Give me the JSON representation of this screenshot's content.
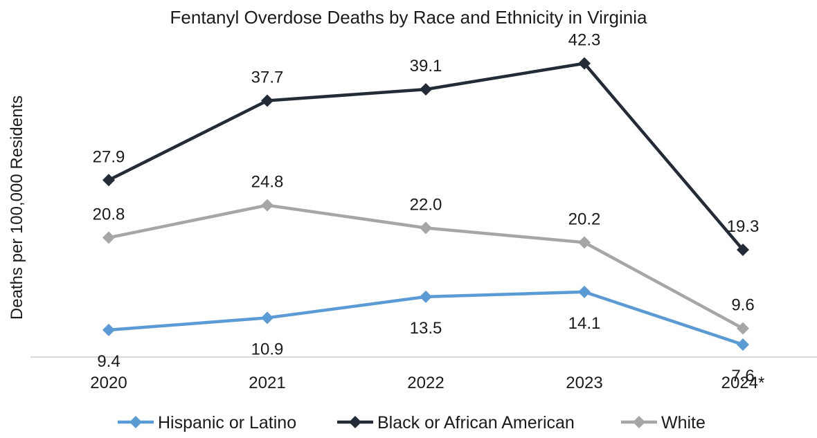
{
  "chart_data": {
    "type": "line",
    "title": "Fentanyl Overdose Deaths by Race and Ethnicity in Virginia",
    "xlabel": "",
    "ylabel": "Deaths per 100,000 Residents",
    "categories": [
      "2020",
      "2021",
      "2022",
      "2023",
      "2024*"
    ],
    "ylim": [
      0,
      45
    ],
    "grid": false,
    "legend_position": "bottom",
    "series": [
      {
        "name": "Hispanic or Latino",
        "color": "#5b9bd5",
        "values": [
          9.4,
          10.9,
          13.5,
          14.1,
          7.6
        ],
        "labels": [
          "9.4",
          "10.9",
          "13.5",
          "14.1",
          "7.6"
        ],
        "label_side": "below"
      },
      {
        "name": "Black or African American",
        "color": "#232b36",
        "values": [
          27.9,
          37.7,
          39.1,
          42.3,
          19.3
        ],
        "labels": [
          "27.9",
          "37.7",
          "39.1",
          "42.3",
          "19.3"
        ],
        "label_side": "above"
      },
      {
        "name": "White",
        "color": "#a6a6a6",
        "values": [
          20.8,
          24.8,
          22.0,
          20.2,
          9.6
        ],
        "labels": [
          "20.8",
          "24.8",
          "22.0",
          "20.2",
          "9.6"
        ],
        "label_side": "above"
      }
    ]
  }
}
